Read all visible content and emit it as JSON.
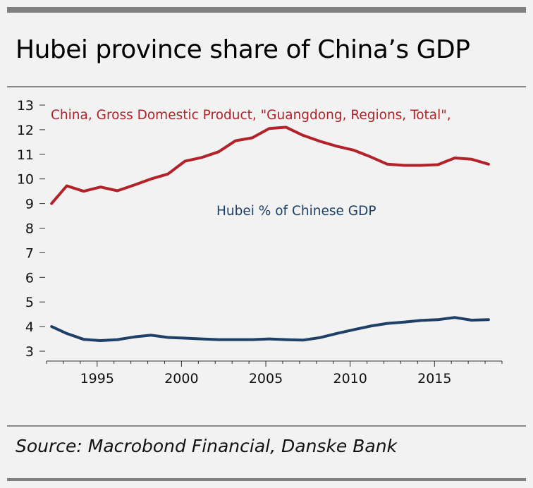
{
  "header": {
    "title": "Hubei province share of China’s GDP"
  },
  "footer": {
    "source": "Source: Macrobond Financial, Danske Bank"
  },
  "chart_data": {
    "type": "line",
    "title": "Hubei province share of China’s GDP",
    "xlabel": "",
    "ylabel": "",
    "xlim": [
      1992,
      2019
    ],
    "ylim": [
      3,
      13
    ],
    "y_ticks": [
      3,
      4,
      5,
      6,
      7,
      8,
      9,
      10,
      11,
      12,
      13
    ],
    "x_ticks": [
      1995,
      2000,
      2005,
      2010,
      2015
    ],
    "series": [
      {
        "name": "China, Gross Domestic Product, \"Guangdong, Regions, Total\",",
        "color": "#b22229",
        "x": [
          1992.3,
          1993.2,
          1994.2,
          1995.2,
          1996.2,
          1997.2,
          1998.2,
          1999.2,
          2000.2,
          2001.2,
          2002.2,
          2003.2,
          2004.2,
          2005.2,
          2006.2,
          2007.2,
          2008.2,
          2009.2,
          2010.2,
          2011.2,
          2012.2,
          2013.2,
          2014.2,
          2015.2,
          2016.2,
          2017.2,
          2018.2
        ],
        "values": [
          9.0,
          9.72,
          9.5,
          9.67,
          9.52,
          9.75,
          10.0,
          10.2,
          10.72,
          10.87,
          11.1,
          11.55,
          11.67,
          12.05,
          12.1,
          11.77,
          11.53,
          11.33,
          11.17,
          10.9,
          10.6,
          10.55,
          10.55,
          10.58,
          10.85,
          10.8,
          10.6
        ]
      },
      {
        "name": "Hubei % of Chinese GDP",
        "color": "#1e3f66",
        "x": [
          1992.3,
          1993.2,
          1994.2,
          1995.2,
          1996.2,
          1997.2,
          1998.2,
          1999.2,
          2000.2,
          2001.2,
          2002.2,
          2003.2,
          2004.2,
          2005.2,
          2006.2,
          2007.2,
          2008.2,
          2009.2,
          2010.2,
          2011.2,
          2012.2,
          2013.2,
          2014.2,
          2015.2,
          2016.2,
          2017.2,
          2018.2
        ],
        "values": [
          4.0,
          3.72,
          3.48,
          3.43,
          3.47,
          3.58,
          3.65,
          3.56,
          3.53,
          3.5,
          3.47,
          3.47,
          3.47,
          3.5,
          3.47,
          3.45,
          3.55,
          3.72,
          3.87,
          4.02,
          4.13,
          4.18,
          4.25,
          4.28,
          4.37,
          4.26,
          4.28
        ]
      }
    ],
    "annotations": [
      {
        "text": "China, Gross Domestic Product, \"Guangdong, Regions, Total\",",
        "color": "#b22229"
      },
      {
        "text": "Hubei % of Chinese GDP",
        "color": "#1e3f66"
      }
    ]
  }
}
